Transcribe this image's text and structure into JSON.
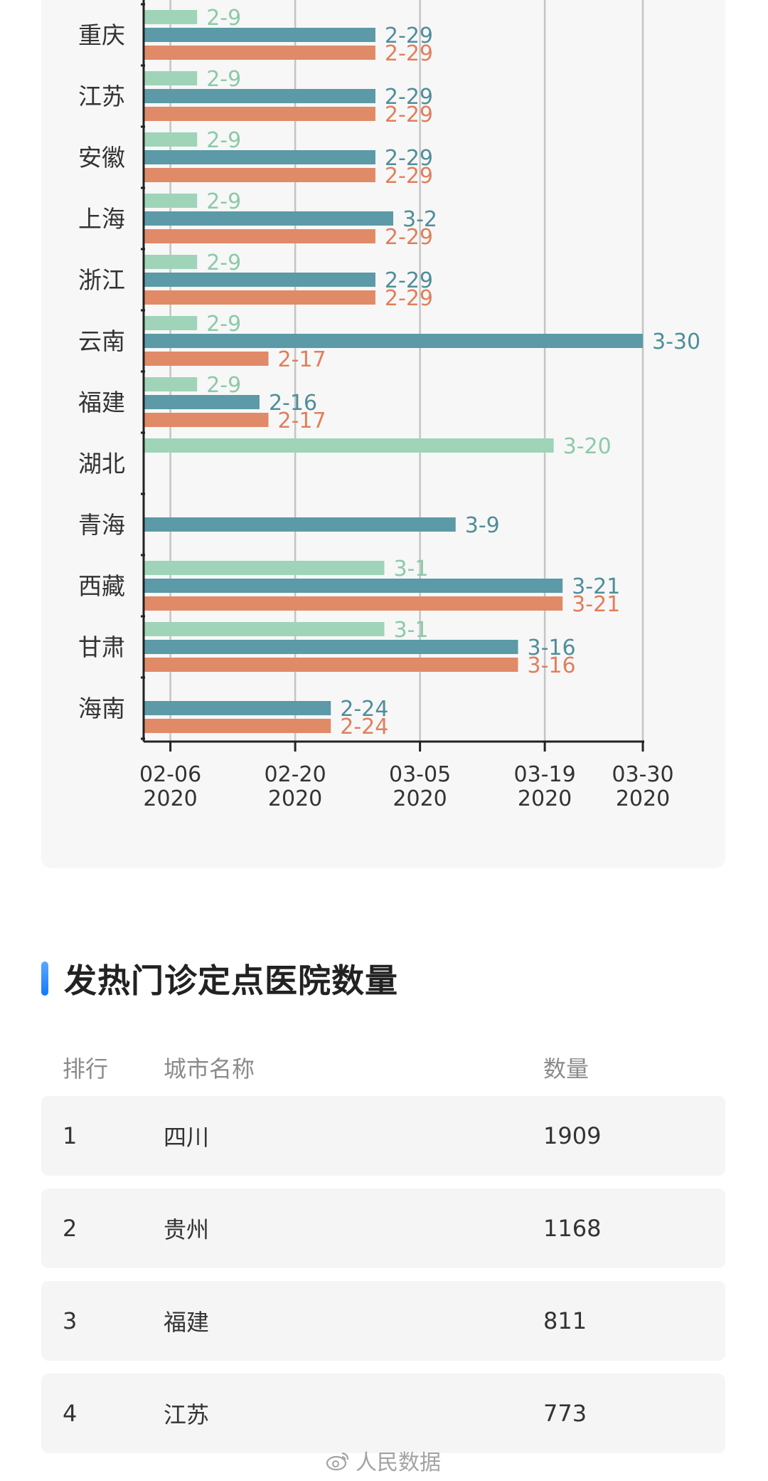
{
  "chart_data": {
    "type": "bar",
    "orientation": "horizontal",
    "categories": [
      "重庆",
      "江苏",
      "安徽",
      "上海",
      "浙江",
      "云南",
      "福建",
      "湖北",
      "青海",
      "西藏",
      "甘肃",
      "海南"
    ],
    "series": [
      {
        "color": "#9fd4b9",
        "label_color": "#8ccaa8",
        "values": [
          "2-9",
          "2-9",
          "2-9",
          "2-9",
          "2-9",
          "2-9",
          "2-9",
          "3-20",
          null,
          "3-1",
          "3-1",
          null
        ]
      },
      {
        "color": "#5b9aa6",
        "label_color": "#4f8e9a",
        "values": [
          "2-29",
          "2-29",
          "2-29",
          "3-2",
          "2-29",
          "3-30",
          "2-16",
          null,
          "3-9",
          "3-21",
          "3-16",
          "2-24"
        ]
      },
      {
        "color": "#e08a68",
        "label_color": "#e07f5c",
        "values": [
          "2-29",
          "2-29",
          "2-29",
          "2-29",
          "2-29",
          "2-17",
          "2-17",
          null,
          null,
          "3-21",
          "3-16",
          "2-24"
        ]
      }
    ],
    "x_ticks": [
      {
        "value": "2-6",
        "line1": "02-06",
        "line2": "2020"
      },
      {
        "value": "2-20",
        "line1": "02-20",
        "line2": "2020"
      },
      {
        "value": "3-5",
        "line1": "03-05",
        "line2": "2020"
      },
      {
        "value": "3-19",
        "line1": "03-19",
        "line2": "2020"
      },
      {
        "value": "3-30",
        "line1": "03-30",
        "line2": "2020"
      }
    ],
    "xlim": [
      "2-3",
      "3-30"
    ],
    "grid": true
  },
  "section": {
    "title": "发热门诊定点医院数量"
  },
  "table": {
    "headers": {
      "rank": "排行",
      "name": "城市名称",
      "count": "数量"
    },
    "rows": [
      {
        "rank": "1",
        "name": "四川",
        "count": "1909"
      },
      {
        "rank": "2",
        "name": "贵州",
        "count": "1168"
      },
      {
        "rank": "3",
        "name": "福建",
        "count": "811"
      },
      {
        "rank": "4",
        "name": "江苏",
        "count": "773"
      }
    ]
  },
  "watermark": {
    "text": "人民数据"
  }
}
